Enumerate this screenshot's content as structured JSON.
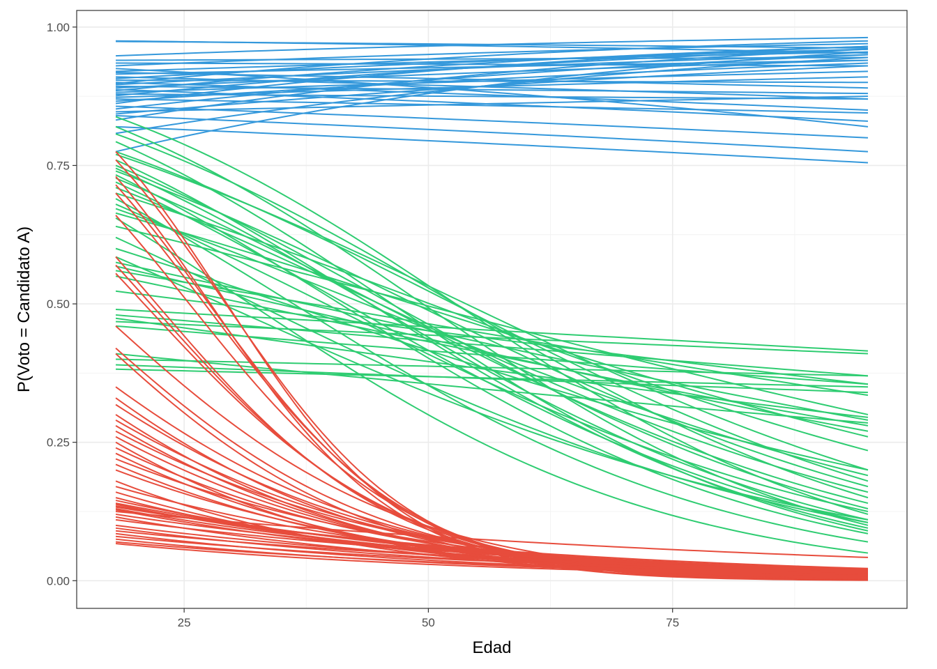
{
  "chart_data": {
    "type": "line",
    "title": "",
    "xlabel": "Edad",
    "ylabel": "P(Voto = Candidato A)",
    "xlim": [
      14,
      99
    ],
    "ylim": [
      -0.05,
      1.03
    ],
    "x_range": [
      18,
      95
    ],
    "x_ticks": [
      25,
      50,
      75
    ],
    "x_tick_labels": [
      "25",
      "50",
      "75"
    ],
    "x_minor_ticks": [
      37.5,
      62.5,
      87.5
    ],
    "y_ticks": [
      0,
      0.25,
      0.5,
      0.75,
      1.0
    ],
    "y_tick_labels": [
      "0.00",
      "0.25",
      "0.50",
      "0.75",
      "1.00"
    ],
    "y_minor_ticks": [
      0.125,
      0.375,
      0.625,
      0.875
    ],
    "grid": true,
    "legend": "none",
    "curve_model": "logistic",
    "curve_fields": [
      "y_at_x18",
      "y_at_x95"
    ],
    "groups": [
      {
        "color": "#3498db",
        "curves": [
          [
            0.975,
            0.953
          ],
          [
            0.974,
            0.962
          ],
          [
            0.948,
            0.981
          ],
          [
            0.94,
            0.945
          ],
          [
            0.935,
            0.93
          ],
          [
            0.93,
            0.97
          ],
          [
            0.925,
            0.82
          ],
          [
            0.92,
            0.955
          ],
          [
            0.918,
            0.89
          ],
          [
            0.915,
            0.94
          ],
          [
            0.91,
            0.87
          ],
          [
            0.907,
            0.96
          ],
          [
            0.904,
            0.9
          ],
          [
            0.9,
            0.85
          ],
          [
            0.898,
            0.975
          ],
          [
            0.896,
            0.95
          ],
          [
            0.893,
            0.88
          ],
          [
            0.89,
            0.94
          ],
          [
            0.887,
            0.83
          ],
          [
            0.885,
            0.965
          ],
          [
            0.882,
            0.92
          ],
          [
            0.879,
            0.87
          ],
          [
            0.876,
            0.96
          ],
          [
            0.873,
            0.91
          ],
          [
            0.87,
            0.845
          ],
          [
            0.866,
            0.935
          ],
          [
            0.862,
            0.965
          ],
          [
            0.857,
            0.8
          ],
          [
            0.852,
            0.95
          ],
          [
            0.847,
            0.875
          ],
          [
            0.843,
            0.93
          ],
          [
            0.84,
            0.775
          ],
          [
            0.832,
            0.96
          ],
          [
            0.82,
            0.755
          ],
          [
            0.808,
            0.945
          ],
          [
            0.775,
            0.955
          ]
        ]
      },
      {
        "color": "#2ecc71",
        "curves": [
          [
            0.838,
            0.12
          ],
          [
            0.82,
            0.1
          ],
          [
            0.807,
            0.15
          ],
          [
            0.793,
            0.09
          ],
          [
            0.775,
            0.18
          ],
          [
            0.77,
            0.2
          ],
          [
            0.76,
            0.095
          ],
          [
            0.75,
            0.13
          ],
          [
            0.745,
            0.11
          ],
          [
            0.74,
            0.17
          ],
          [
            0.733,
            0.085
          ],
          [
            0.727,
            0.14
          ],
          [
            0.72,
            0.105
          ],
          [
            0.71,
            0.16
          ],
          [
            0.7,
            0.235
          ],
          [
            0.69,
            0.07
          ],
          [
            0.68,
            0.125
          ],
          [
            0.672,
            0.19
          ],
          [
            0.664,
            0.26
          ],
          [
            0.655,
            0.05
          ],
          [
            0.64,
            0.3
          ],
          [
            0.62,
            0.105
          ],
          [
            0.6,
            0.2
          ],
          [
            0.585,
            0.11
          ],
          [
            0.575,
            0.29
          ],
          [
            0.568,
            0.27
          ],
          [
            0.56,
            0.335
          ],
          [
            0.55,
            0.28
          ],
          [
            0.523,
            0.355
          ],
          [
            0.49,
            0.415
          ],
          [
            0.48,
            0.37
          ],
          [
            0.474,
            0.295
          ],
          [
            0.468,
            0.41
          ],
          [
            0.46,
            0.355
          ],
          [
            0.41,
            0.285
          ],
          [
            0.4,
            0.37
          ],
          [
            0.39,
            0.34
          ],
          [
            0.382,
            0.35
          ]
        ]
      },
      {
        "color": "#e74c3c",
        "curves": [
          [
            0.775,
            0.0008
          ],
          [
            0.76,
            0.0012
          ],
          [
            0.73,
            0.001
          ],
          [
            0.715,
            0.0015
          ],
          [
            0.7,
            0.0018
          ],
          [
            0.66,
            0.0022
          ],
          [
            0.585,
            0.0025
          ],
          [
            0.57,
            0.003
          ],
          [
            0.555,
            0.0035
          ],
          [
            0.46,
            0.006
          ],
          [
            0.42,
            0.005
          ],
          [
            0.41,
            0.004
          ],
          [
            0.35,
            0.007
          ],
          [
            0.33,
            0.006
          ],
          [
            0.318,
            0.008
          ],
          [
            0.3,
            0.006
          ],
          [
            0.29,
            0.009
          ],
          [
            0.28,
            0.007
          ],
          [
            0.27,
            0.01
          ],
          [
            0.26,
            0.008
          ],
          [
            0.25,
            0.005
          ],
          [
            0.24,
            0.009
          ],
          [
            0.23,
            0.007
          ],
          [
            0.22,
            0.012
          ],
          [
            0.21,
            0.008
          ],
          [
            0.2,
            0.01
          ],
          [
            0.18,
            0.006
          ],
          [
            0.17,
            0.013
          ],
          [
            0.16,
            0.009
          ],
          [
            0.15,
            0.011
          ],
          [
            0.145,
            0.016
          ],
          [
            0.14,
            0.018
          ],
          [
            0.138,
            0.015
          ],
          [
            0.135,
            0.02
          ],
          [
            0.133,
            0.022
          ],
          [
            0.13,
            0.017
          ],
          [
            0.128,
            0.014
          ],
          [
            0.125,
            0.042
          ],
          [
            0.12,
            0.019
          ],
          [
            0.115,
            0.012
          ],
          [
            0.11,
            0.02
          ],
          [
            0.1,
            0.016
          ],
          [
            0.095,
            0.013
          ],
          [
            0.09,
            0.018
          ],
          [
            0.085,
            0.011
          ],
          [
            0.08,
            0.015
          ],
          [
            0.075,
            0.01
          ],
          [
            0.07,
            0.012
          ],
          [
            0.067,
            0.009
          ]
        ]
      }
    ]
  }
}
